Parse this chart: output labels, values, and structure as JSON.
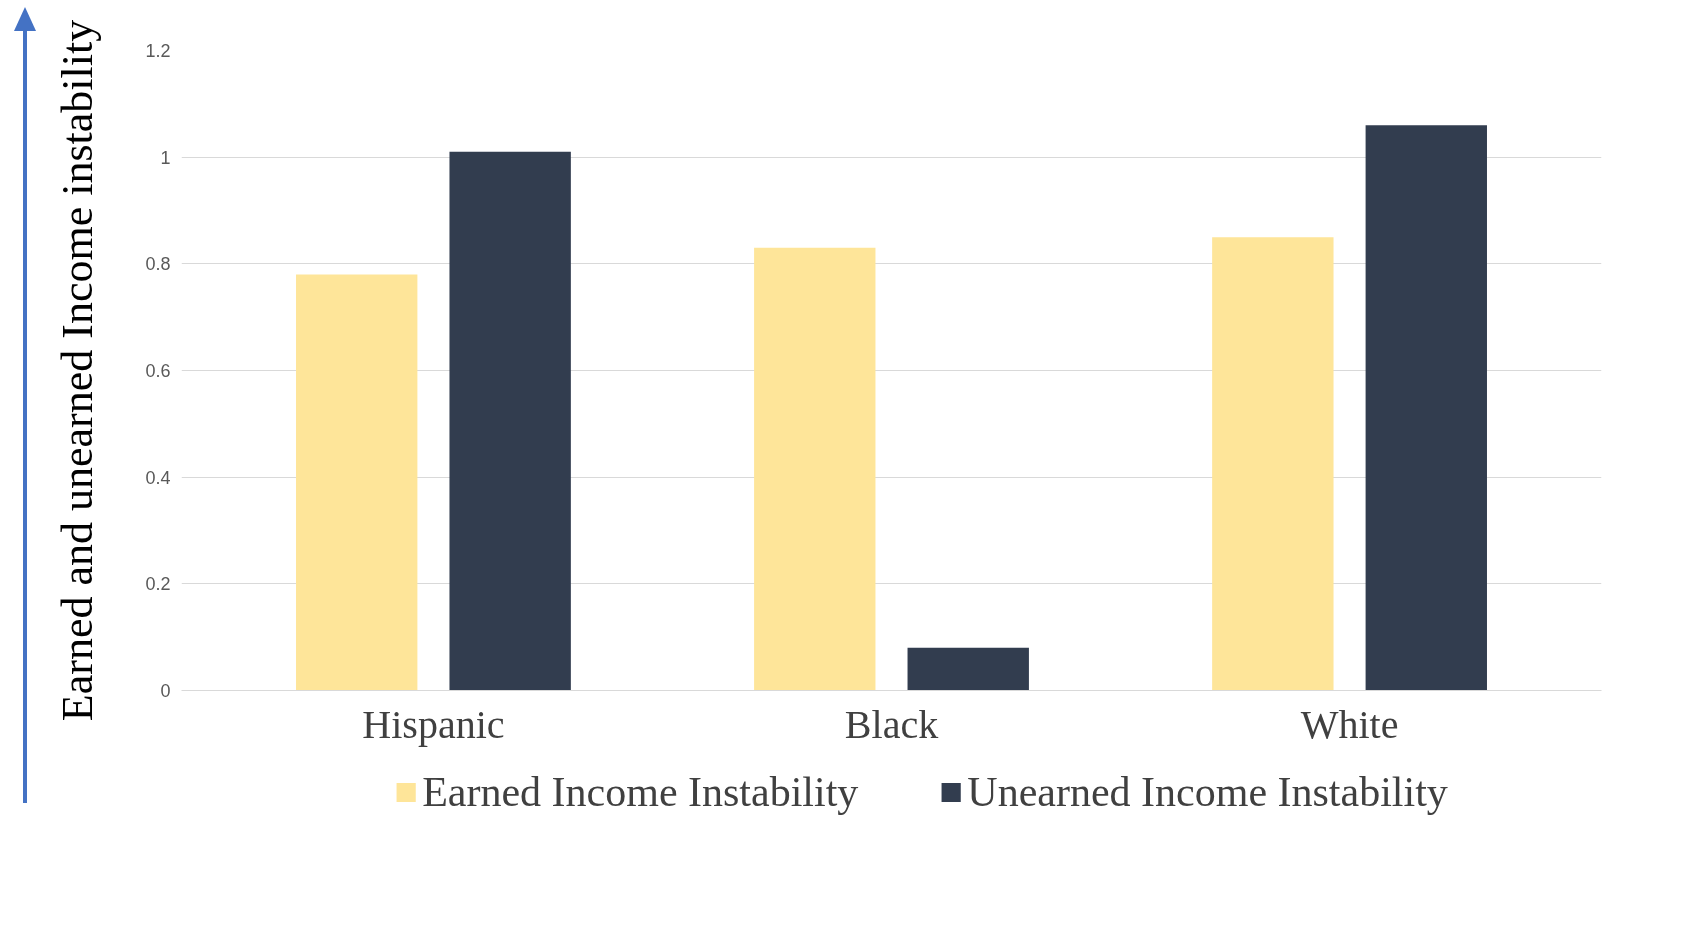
{
  "chart_data": {
    "type": "bar",
    "ylabel": "Earned and unearned Income instability",
    "categories": [
      "Hispanic",
      "Black",
      "White"
    ],
    "series": [
      {
        "name": "Earned Income Instability",
        "color": "#fee599",
        "values": [
          0.78,
          0.83,
          0.85
        ]
      },
      {
        "name": "Unearned Income Instability",
        "color": "#323d4f",
        "values": [
          1.01,
          0.08,
          1.06
        ]
      }
    ],
    "ylim": [
      0,
      1.2
    ],
    "yticks": [
      0,
      0.2,
      0.4,
      0.6,
      0.8,
      1,
      {
        "value": 1.2,
        "label": "1.2"
      }
    ],
    "grid": "y",
    "legend": "bottom"
  }
}
